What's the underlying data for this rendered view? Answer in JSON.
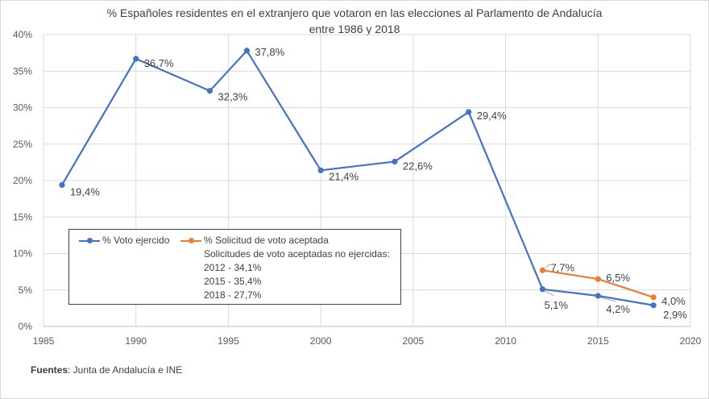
{
  "chart_data": {
    "type": "line",
    "title": "% Españoles residentes en el extranjero que votaron en las elecciones al Parlamento de Andalucía entre 1986 y 2018",
    "title_lines": [
      "% Españoles residentes en el extranjero que votaron en las elecciones al Parlamento de Andalucía",
      "entre 1986 y 2018"
    ],
    "xlabel": "",
    "ylabel": "",
    "xlim": [
      1985,
      2020
    ],
    "ylim": [
      0,
      40
    ],
    "x_ticks": [
      1985,
      1990,
      1995,
      2000,
      2005,
      2010,
      2015,
      2020
    ],
    "x_tick_labels": [
      "1985",
      "1990",
      "1995",
      "2000",
      "2005",
      "2010",
      "2015",
      "2020"
    ],
    "y_ticks": [
      0,
      5,
      10,
      15,
      20,
      25,
      30,
      35,
      40
    ],
    "y_tick_labels": [
      "0%",
      "5%",
      "10%",
      "15%",
      "20%",
      "25%",
      "30%",
      "35%",
      "40%"
    ],
    "grid": true,
    "legend_position": "bottom-left",
    "series": [
      {
        "name": "% Voto ejercido",
        "color": "#4472C4",
        "x": [
          1986,
          1990,
          1994,
          1996,
          2000,
          2004,
          2008,
          2012,
          2015,
          2018
        ],
        "values": [
          19.4,
          36.7,
          32.3,
          37.8,
          21.4,
          22.6,
          29.4,
          5.1,
          4.2,
          2.9
        ],
        "labels": [
          "19,4%",
          "36,7%",
          "32,3%",
          "37,8%",
          "21,4%",
          "22,6%",
          "29,4%",
          "5,1%",
          "4,2%",
          "2,9%"
        ]
      },
      {
        "name": "% Solicitud de voto aceptada",
        "color": "#ED7D31",
        "x": [
          2012,
          2015,
          2018
        ],
        "values": [
          7.7,
          6.5,
          4.0
        ],
        "labels": [
          "7,7%",
          "6,5%",
          "4,0%"
        ]
      }
    ],
    "annotations": [
      "Solicitudes de voto aceptadas no ejercidas:",
      "2012 - 34,1%",
      "2015 - 35,4%",
      "2018 - 27,7%"
    ]
  },
  "legend": {
    "series1": "% Voto ejercido",
    "series2": "% Solicitud de voto aceptada",
    "note_title": "Solicitudes de voto aceptadas no ejercidas:",
    "note_2012": "2012 - 34,1%",
    "note_2015": "2015 - 35,4%",
    "note_2018": "2018 - 27,7%"
  },
  "source": {
    "label": "Fuentes",
    "text": ": Junta de Andalucía e INE"
  }
}
